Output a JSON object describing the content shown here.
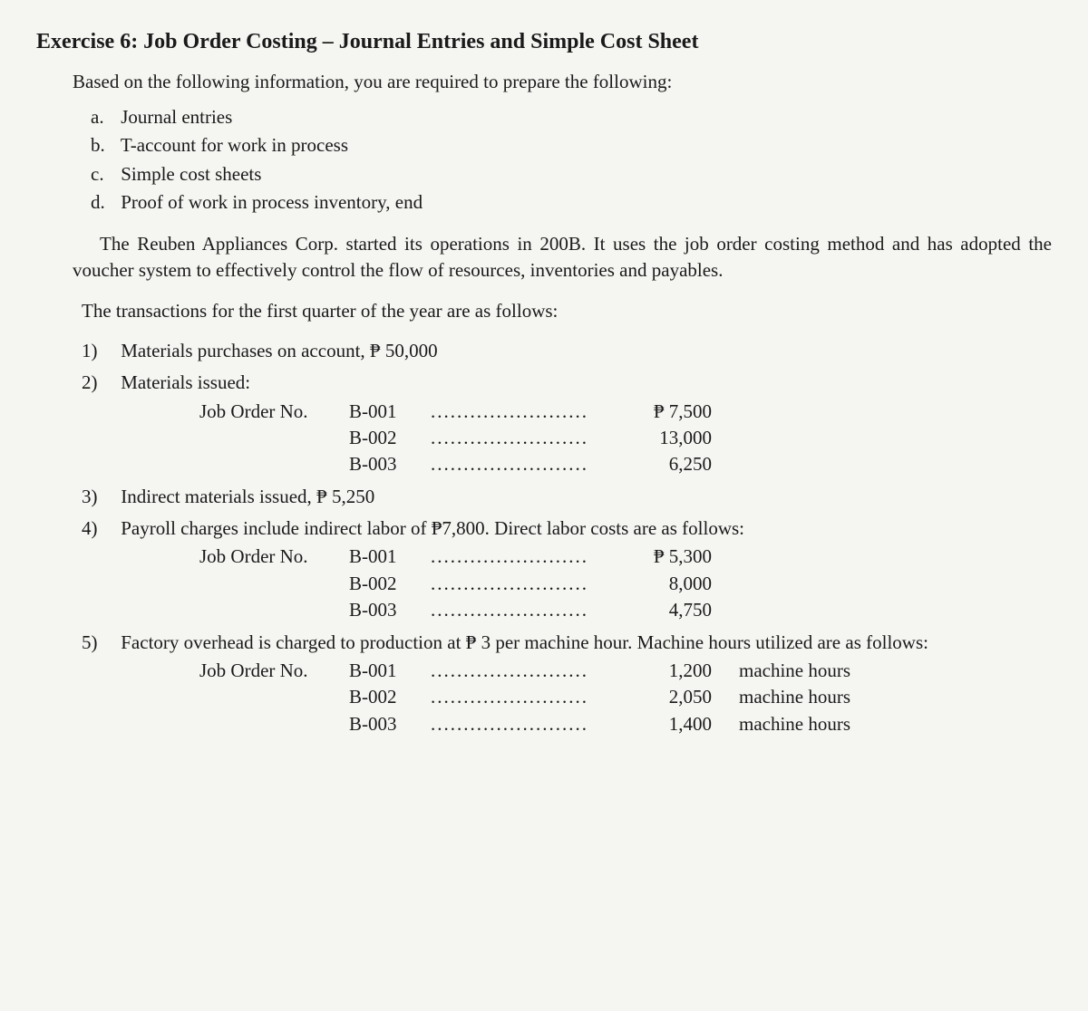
{
  "title": "Exercise 6:  Job Order Costing – Journal Entries and Simple Cost Sheet",
  "intro": "Based on the following information, you are required to prepare the following:",
  "requirements": [
    {
      "letter": "a.",
      "text": "Journal entries"
    },
    {
      "letter": "b.",
      "text": "T-account for work in process"
    },
    {
      "letter": "c.",
      "text": "Simple cost sheets"
    },
    {
      "letter": "d.",
      "text": "Proof of work in process inventory, end"
    }
  ],
  "company_para": "The Reuben Appliances Corp.  started its operations in 200B.  It uses the job order costing method and has adopted the voucher system to effectively control the flow of resources, inventories and payables.",
  "trans_intro": "The transactions for the first quarter of the year are as follows:",
  "t1": {
    "num": "1)",
    "text": "Materials purchases on account, ₱ 50,000"
  },
  "t2": {
    "num": "2)",
    "text": "Materials issued:",
    "label": "Job Order No.",
    "rows": [
      {
        "code": "B-001",
        "amount": "₱  7,500"
      },
      {
        "code": "B-002",
        "amount": "13,000"
      },
      {
        "code": "B-003",
        "amount": "6,250"
      }
    ]
  },
  "t3": {
    "num": "3)",
    "text": "Indirect materials issued, ₱ 5,250"
  },
  "t4": {
    "num": "4)",
    "text": "Payroll charges include indirect labor of ₱7,800.  Direct labor costs are as follows:",
    "label": "Job Order No.",
    "rows": [
      {
        "code": "B-001",
        "amount": "₱  5,300"
      },
      {
        "code": "B-002",
        "amount": "8,000"
      },
      {
        "code": "B-003",
        "amount": "4,750"
      }
    ]
  },
  "t5": {
    "num": "5)",
    "text": "Factory overhead is charged to production at ₱ 3 per machine hour.  Machine hours utilized are as follows:",
    "label": "Job Order No.",
    "rows": [
      {
        "code": "B-001",
        "amount": "1,200",
        "trail": "machine hours"
      },
      {
        "code": "B-002",
        "amount": "2,050",
        "trail": "machine hours"
      },
      {
        "code": "B-003",
        "amount": "1,400",
        "trail": "machine hours"
      }
    ]
  },
  "dots": "........................"
}
